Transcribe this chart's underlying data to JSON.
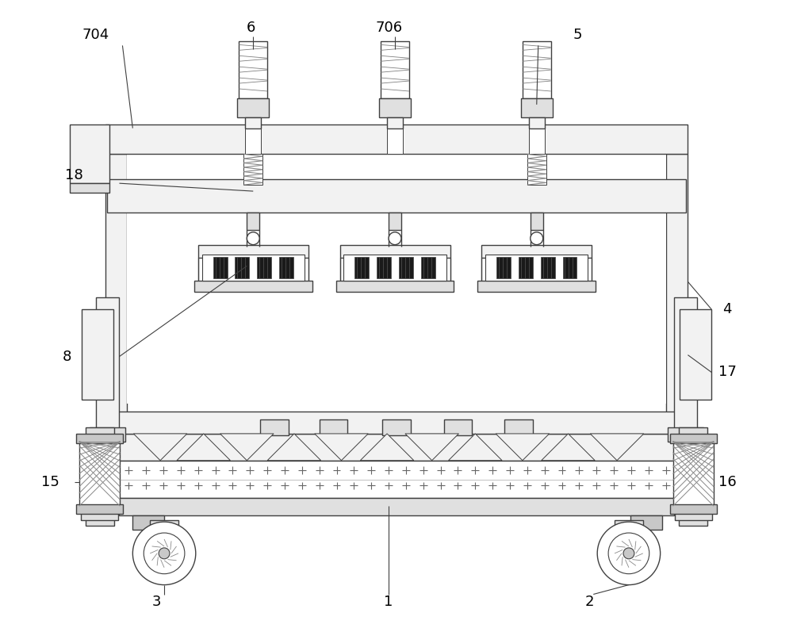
{
  "bg_color": "#ffffff",
  "lc": "#404040",
  "lc2": "#606060",
  "figsize": [
    10.0,
    7.92
  ],
  "dpi": 100,
  "gray1": "#f2f2f2",
  "gray2": "#e0e0e0",
  "gray3": "#c8c8c8",
  "gray4": "#a0a0a0",
  "dark": "#333333",
  "label_color": "#000000"
}
